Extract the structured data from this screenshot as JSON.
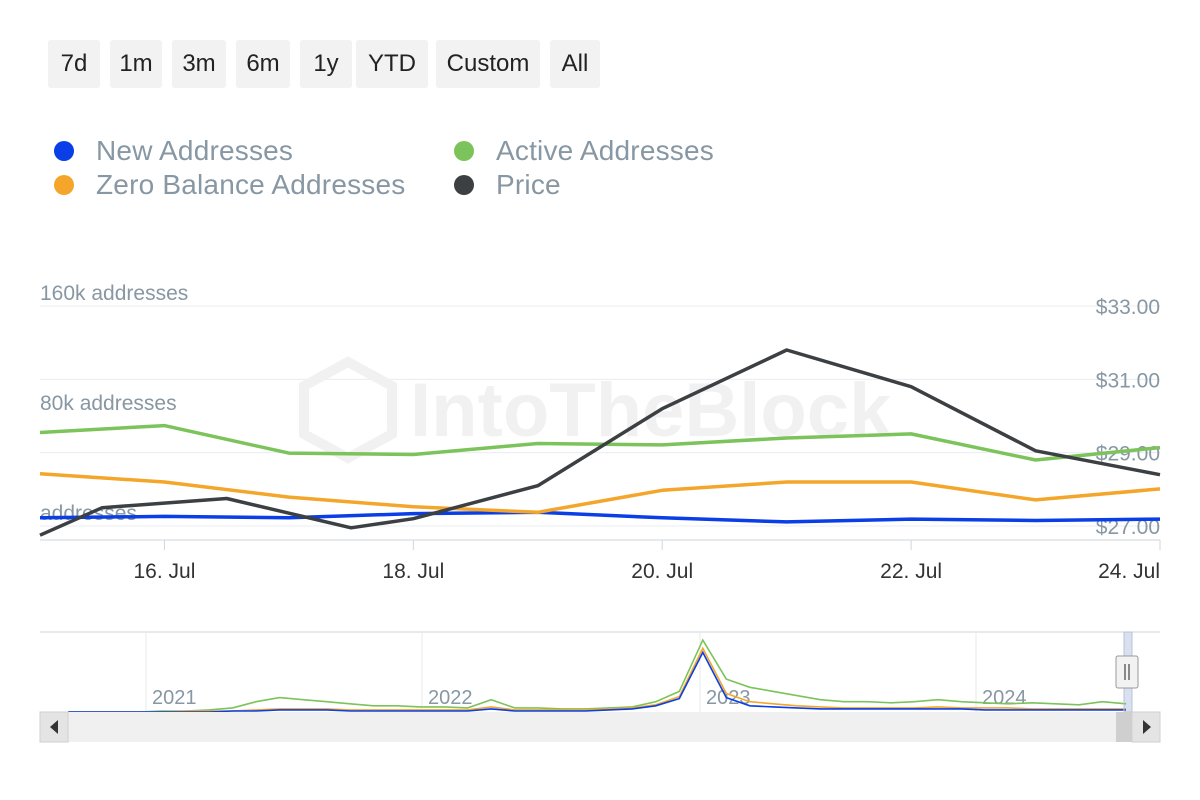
{
  "range_buttons": [
    "7d",
    "1m",
    "3m",
    "6m",
    "1y",
    "YTD",
    "Custom",
    "All"
  ],
  "legend": [
    {
      "label": "New Addresses",
      "color": "#0a3ee6"
    },
    {
      "label": "Active Addresses",
      "color": "#7cc35b"
    },
    {
      "label": "Zero Balance Addresses",
      "color": "#f4a62a"
    },
    {
      "label": "Price",
      "color": "#3c4043"
    }
  ],
  "watermark": "IntoTheBlock",
  "chart_data": {
    "type": "line",
    "x": [
      "2024-07-15",
      "2024-07-15T12",
      "2024-07-16",
      "2024-07-16T12",
      "2024-07-17",
      "2024-07-17T12",
      "2024-07-18",
      "2024-07-18T12",
      "2024-07-19",
      "2024-07-19T12",
      "2024-07-20",
      "2024-07-20T12",
      "2024-07-21",
      "2024-07-21T12",
      "2024-07-22",
      "2024-07-22T12",
      "2024-07-23",
      "2024-07-23T12",
      "2024-07-24"
    ],
    "x_points_note_removed": true,
    "series": [
      {
        "name": "New Addresses",
        "axis": "left",
        "color": "#0a3ee6",
        "x": [
          "2024-07-15",
          "2024-07-16",
          "2024-07-17",
          "2024-07-18",
          "2024-07-19",
          "2024-07-20",
          "2024-07-21",
          "2024-07-22",
          "2024-07-23",
          "2024-07-24"
        ],
        "values": [
          6000,
          7000,
          6000,
          9000,
          10000,
          6000,
          3000,
          5000,
          4000,
          5000
        ]
      },
      {
        "name": "Active Addresses",
        "axis": "left",
        "color": "#7cc35b",
        "x": [
          "2024-07-15",
          "2024-07-16",
          "2024-07-17",
          "2024-07-18",
          "2024-07-19",
          "2024-07-20",
          "2024-07-21",
          "2024-07-22",
          "2024-07-23",
          "2024-07-24"
        ],
        "values": [
          68000,
          73000,
          53000,
          52000,
          60000,
          59000,
          64000,
          67000,
          48000,
          57000
        ]
      },
      {
        "name": "Zero Balance Addresses",
        "axis": "left",
        "color": "#f4a62a",
        "x": [
          "2024-07-15",
          "2024-07-16",
          "2024-07-17",
          "2024-07-18",
          "2024-07-19",
          "2024-07-20",
          "2024-07-21",
          "2024-07-22",
          "2024-07-23",
          "2024-07-24"
        ],
        "values": [
          38000,
          32000,
          21000,
          14000,
          10000,
          26000,
          32000,
          32000,
          19000,
          27000
        ]
      },
      {
        "name": "Price",
        "axis": "right",
        "color": "#3c4043",
        "x": [
          "2024-07-15",
          "2024-07-15T12",
          "2024-07-16T12",
          "2024-07-17T12",
          "2024-07-18",
          "2024-07-19",
          "2024-07-20",
          "2024-07-21",
          "2024-07-22",
          "2024-07-23",
          "2024-07-24"
        ],
        "values": [
          26.75,
          27.5,
          27.75,
          26.95,
          27.2,
          28.1,
          30.2,
          31.8,
          30.8,
          29.05,
          28.4
        ]
      }
    ],
    "left_axis": {
      "ticks": [
        {
          "v": 160000,
          "label": "160k addresses"
        },
        {
          "v": 80000,
          "label": "80k addresses"
        },
        {
          "v": 0,
          "label": "addresses"
        }
      ],
      "ylim": [
        0,
        160000
      ]
    },
    "right_axis": {
      "ticks": [
        {
          "v": 33,
          "label": "$33.00"
        },
        {
          "v": 31,
          "label": "$31.00"
        },
        {
          "v": 29,
          "label": "$29.00"
        },
        {
          "v": 27,
          "label": "$27.00"
        }
      ],
      "ylim": [
        27,
        33
      ]
    },
    "x_ticks": [
      {
        "x": "2024-07-16",
        "label": "16. Jul"
      },
      {
        "x": "2024-07-18",
        "label": "18. Jul"
      },
      {
        "x": "2024-07-20",
        "label": "20. Jul"
      },
      {
        "x": "2024-07-22",
        "label": "22. Jul"
      },
      {
        "x": "2024-07-24",
        "label": "24. Jul"
      }
    ],
    "xlim": [
      "2024-07-15",
      "2024-07-24"
    ],
    "grid": true,
    "legend_position": "top-left"
  },
  "navigator": {
    "year_labels": [
      "2021",
      "2022",
      "2023",
      "2024"
    ],
    "series": [
      {
        "name": "Active Addresses",
        "color": "#7cc35b",
        "values": [
          0,
          0,
          0,
          0,
          1,
          1,
          2,
          4,
          10,
          14,
          12,
          10,
          8,
          6,
          6,
          5,
          5,
          4,
          12,
          4,
          4,
          3,
          3,
          4,
          5,
          10,
          20,
          70,
          32,
          24,
          20,
          16,
          12,
          10,
          10,
          9,
          10,
          12,
          10,
          9,
          8,
          9,
          8,
          7,
          10,
          8
        ]
      },
      {
        "name": "Zero Balance Addresses",
        "color": "#f4a62a",
        "values": [
          0,
          0,
          0,
          0,
          0,
          1,
          1,
          1,
          2,
          3,
          3,
          3,
          2,
          2,
          2,
          2,
          2,
          2,
          5,
          2,
          2,
          2,
          2,
          3,
          4,
          7,
          15,
          62,
          18,
          10,
          8,
          6,
          5,
          4,
          4,
          4,
          4,
          5,
          4,
          4,
          4,
          3,
          3,
          3,
          3,
          3
        ]
      },
      {
        "name": "New Addresses",
        "color": "#0a3ee6",
        "values": [
          0,
          0,
          0,
          0,
          0,
          0,
          0,
          1,
          1,
          2,
          2,
          2,
          1,
          1,
          1,
          1,
          1,
          1,
          3,
          1,
          1,
          1,
          1,
          2,
          3,
          6,
          13,
          58,
          14,
          6,
          5,
          4,
          3,
          3,
          3,
          3,
          3,
          3,
          3,
          2,
          2,
          2,
          2,
          2,
          2,
          2
        ]
      }
    ]
  }
}
